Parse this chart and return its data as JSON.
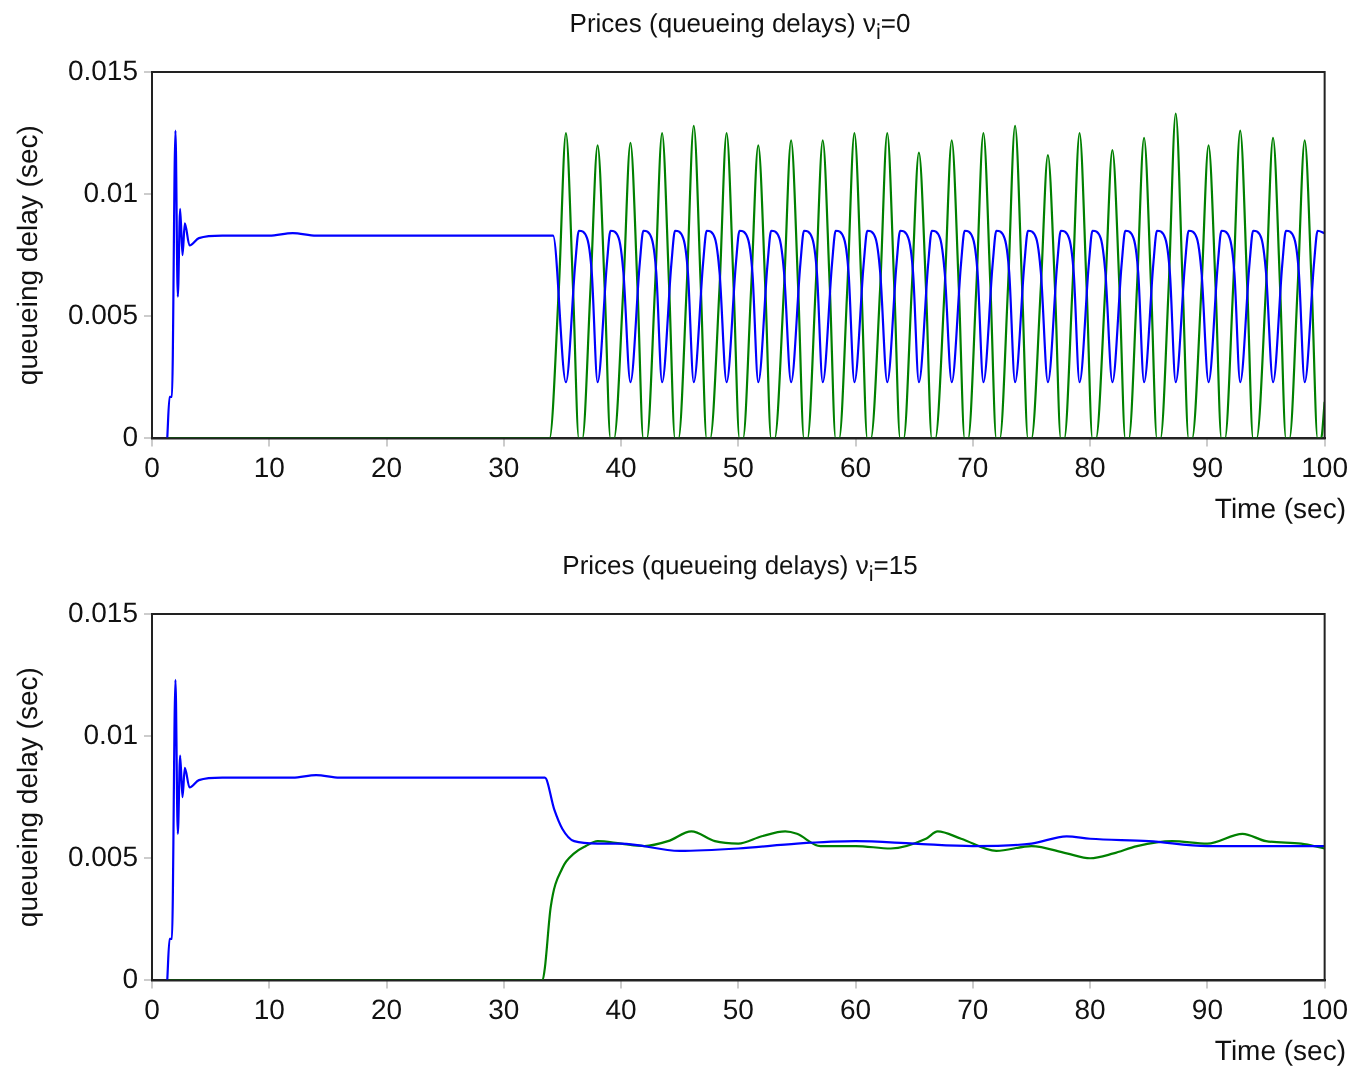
{
  "chart_data": [
    {
      "type": "line",
      "title": "Prices (queueing delays) ν$_{i}$=0",
      "xlabel": "Time (sec)",
      "ylabel": "queueing delay (sec)",
      "xlim": [
        0,
        100
      ],
      "ylim": [
        0,
        0.015
      ],
      "xticks": [
        0,
        10,
        20,
        30,
        40,
        50,
        60,
        70,
        80,
        90,
        100
      ],
      "yticks": [
        0,
        0.005,
        0.01,
        0.015
      ],
      "series": [
        {
          "color": "#0000ff",
          "x": [
            1.3,
            1.5,
            1.7,
            2.0,
            2.2,
            2.4,
            2.6,
            2.8,
            3.2,
            4,
            6,
            8,
            10,
            12,
            14,
            16,
            18,
            20,
            22,
            24,
            26,
            28,
            30,
            32,
            34.2,
            35.3,
            36.1,
            36.4,
            37.1,
            37.5,
            38.0,
            38.8,
            39.1,
            39.8,
            40.2,
            40.8,
            41.6,
            41.9,
            42.6,
            43.0,
            43.5,
            44.3,
            44.6,
            45.3,
            45.7,
            46.2,
            47.0,
            47.3,
            48.0,
            48.4,
            49.0,
            49.8,
            50.1,
            50.8,
            51.2,
            51.7,
            52.5,
            52.8,
            53.5,
            53.9,
            54.5,
            55.3,
            55.6,
            56.3,
            56.7,
            57.2,
            58.0,
            58.3,
            59.0,
            59.4,
            59.9,
            60.7,
            61.0,
            61.7,
            62.1,
            62.7,
            63.5,
            63.8,
            64.5,
            64.9,
            65.4,
            66.2,
            66.5,
            67.2,
            67.6,
            68.2,
            69.0,
            69.3,
            70.0,
            70.4,
            70.9,
            71.7,
            72.0,
            72.7,
            73.1,
            73.6,
            74.4,
            74.7,
            75.4,
            75.8,
            76.4,
            77.2,
            77.5,
            78.2,
            78.6,
            79.1,
            79.9,
            80.2,
            80.9,
            81.3,
            81.9,
            82.7,
            83.0,
            83.7,
            84.1,
            84.6,
            85.4,
            85.7,
            86.4,
            86.8,
            87.3,
            88.1,
            88.4,
            89.1,
            89.5,
            90.1,
            90.9,
            91.2,
            91.9,
            92.3,
            92.8,
            93.6,
            93.9,
            94.6,
            95.0,
            95.6,
            96.4,
            96.7,
            97.4,
            97.8,
            98.3,
            99.1,
            99.4,
            100
          ],
          "values": [
            0,
            0.0017,
            0.0017,
            0.0126,
            0.0058,
            0.0094,
            0.0075,
            0.0088,
            0.0079,
            0.0082,
            0.0083,
            0.0083,
            0.0083,
            0.0084,
            0.0083,
            0.0083,
            0.0083,
            0.0083,
            0.0083,
            0.0083,
            0.0083,
            0.0083,
            0.0083,
            0.0083,
            0.0083,
            0.0023,
            0.0072,
            0.0085,
            0.0082,
            0.0068,
            0.0023,
            0.0072,
            0.0085,
            0.0082,
            0.0068,
            0.0023,
            0.0072,
            0.0085,
            0.0082,
            0.0068,
            0.0023,
            0.0072,
            0.0085,
            0.0082,
            0.0068,
            0.0023,
            0.0072,
            0.0085,
            0.0082,
            0.0068,
            0.0023,
            0.0072,
            0.0085,
            0.0082,
            0.0068,
            0.0023,
            0.0072,
            0.0085,
            0.0082,
            0.0068,
            0.0023,
            0.0072,
            0.0085,
            0.0082,
            0.0068,
            0.0023,
            0.0072,
            0.0085,
            0.0082,
            0.0068,
            0.0023,
            0.0072,
            0.0085,
            0.0082,
            0.0068,
            0.0023,
            0.0072,
            0.0085,
            0.0082,
            0.0068,
            0.0023,
            0.0072,
            0.0085,
            0.0082,
            0.0068,
            0.0023,
            0.0072,
            0.0085,
            0.0082,
            0.0068,
            0.0023,
            0.0072,
            0.0085,
            0.0082,
            0.0068,
            0.0023,
            0.0072,
            0.0085,
            0.0082,
            0.0068,
            0.0023,
            0.0072,
            0.0085,
            0.0082,
            0.0068,
            0.0023,
            0.0072,
            0.0085,
            0.0082,
            0.0068,
            0.0023,
            0.0072,
            0.0085,
            0.0082,
            0.0068,
            0.0023,
            0.0072,
            0.0085,
            0.0082,
            0.0068,
            0.0023,
            0.0072,
            0.0085,
            0.0082,
            0.0068,
            0.0023,
            0.0072,
            0.0085,
            0.0082,
            0.0068,
            0.0023,
            0.0072,
            0.0085,
            0.0082,
            0.0068,
            0.0023,
            0.0072,
            0.0085,
            0.0082,
            0.0068,
            0.0023,
            0.0072,
            0.0085,
            0.0084
          ]
        },
        {
          "color": "#008000",
          "x": [
            1.3,
            33.9,
            34.7,
            35.3,
            35.9,
            36.4,
            36.7,
            37.4,
            38.0,
            38.6,
            39.1,
            39.4,
            40.2,
            40.8,
            41.4,
            41.9,
            42.2,
            42.9,
            43.5,
            44.1,
            44.6,
            44.9,
            45.6,
            46.2,
            46.8,
            47.3,
            47.6,
            48.4,
            49.0,
            49.6,
            50.1,
            50.4,
            51.1,
            51.7,
            52.3,
            52.8,
            53.1,
            53.9,
            54.5,
            55.1,
            55.6,
            55.9,
            56.6,
            57.2,
            57.8,
            58.3,
            58.6,
            59.3,
            59.9,
            60.5,
            61.0,
            61.3,
            62.1,
            62.7,
            63.3,
            63.8,
            64.1,
            64.8,
            65.4,
            66.0,
            66.5,
            66.8,
            67.6,
            68.2,
            68.8,
            69.3,
            69.6,
            70.3,
            70.9,
            71.5,
            72.0,
            72.3,
            73.0,
            73.6,
            74.2,
            74.7,
            75.0,
            75.8,
            76.4,
            77.0,
            77.5,
            77.8,
            78.5,
            79.1,
            79.7,
            80.2,
            80.5,
            81.3,
            81.9,
            82.5,
            83.0,
            83.3,
            84.0,
            84.6,
            85.2,
            85.7,
            86.0,
            86.7,
            87.3,
            87.9,
            88.4,
            88.7,
            89.5,
            90.1,
            90.7,
            91.2,
            91.5,
            92.2,
            92.8,
            93.4,
            93.9,
            94.2,
            95.0,
            95.6,
            96.2,
            96.7,
            97.0,
            97.7,
            98.3,
            98.9,
            99.4,
            99.7,
            100
          ],
          "values": [
            0,
            0,
            0.0062,
            0.0125,
            0.0062,
            0,
            0,
            0.0062,
            0.012,
            0.0062,
            0,
            0,
            0.0062,
            0.0121,
            0.0062,
            0,
            0,
            0.0062,
            0.0125,
            0.0062,
            0,
            0,
            0.0062,
            0.0128,
            0.0062,
            0,
            0,
            0.0062,
            0.0125,
            0.0062,
            0,
            0,
            0.0062,
            0.012,
            0.0062,
            0,
            0,
            0.0062,
            0.0122,
            0.0062,
            0,
            0,
            0.0062,
            0.0122,
            0.0062,
            0,
            0,
            0.0062,
            0.0125,
            0.0062,
            0,
            0,
            0.0062,
            0.0125,
            0.0062,
            0,
            0,
            0.0062,
            0.0117,
            0.0062,
            0,
            0,
            0.0062,
            0.0122,
            0.0062,
            0,
            0,
            0.0062,
            0.0125,
            0.0062,
            0,
            0,
            0.0062,
            0.0128,
            0.0062,
            0,
            0,
            0.0062,
            0.0116,
            0.0062,
            0,
            0,
            0.0062,
            0.0125,
            0.0062,
            0,
            0,
            0.0062,
            0.0118,
            0.0062,
            0,
            0,
            0.0062,
            0.0123,
            0.0062,
            0,
            0,
            0.0062,
            0.0133,
            0.0062,
            0,
            0,
            0.0062,
            0.012,
            0.0062,
            0,
            0,
            0.0062,
            0.0126,
            0.0062,
            0,
            0,
            0.0062,
            0.0123,
            0.0062,
            0,
            0,
            0.0062,
            0.0122,
            0.0062,
            0,
            0,
            0.0015
          ]
        }
      ]
    },
    {
      "type": "line",
      "title": "Prices (queueing delays) ν$_{i}$=15",
      "xlabel": "Time (sec)",
      "ylabel": "queueing delay (sec)",
      "xlim": [
        0,
        100
      ],
      "ylim": [
        0,
        0.015
      ],
      "xticks": [
        0,
        10,
        20,
        30,
        40,
        50,
        60,
        70,
        80,
        90,
        100
      ],
      "yticks": [
        0,
        0.005,
        0.01,
        0.015
      ],
      "series": [
        {
          "color": "#0000ff",
          "x": [
            1.3,
            1.5,
            1.7,
            2.0,
            2.2,
            2.4,
            2.6,
            2.8,
            3.2,
            4,
            6,
            8,
            10,
            12,
            14,
            16,
            18,
            20,
            22,
            24,
            26,
            28,
            30,
            32,
            33.5,
            34.3,
            35,
            36,
            38,
            40,
            45,
            50,
            55,
            60,
            65,
            70,
            75,
            78,
            80,
            85,
            90,
            95,
            100
          ],
          "values": [
            0,
            0.0017,
            0.0017,
            0.0123,
            0.006,
            0.0092,
            0.0075,
            0.0087,
            0.0079,
            0.0082,
            0.0083,
            0.0083,
            0.0083,
            0.0083,
            0.0084,
            0.0083,
            0.0083,
            0.0083,
            0.0083,
            0.0083,
            0.0083,
            0.0083,
            0.0083,
            0.0083,
            0.0083,
            0.007,
            0.0062,
            0.0057,
            0.0056,
            0.0056,
            0.0053,
            0.0054,
            0.0056,
            0.0057,
            0.0056,
            0.0055,
            0.0056,
            0.0059,
            0.0058,
            0.0057,
            0.0055,
            0.0055,
            0.0055
          ]
        },
        {
          "color": "#008000",
          "x": [
            1.3,
            33.3,
            33.5,
            34,
            35,
            36,
            37,
            38,
            40,
            42,
            44,
            46,
            48,
            50,
            52,
            54,
            55,
            57,
            60,
            63,
            66,
            67,
            69,
            72,
            75,
            78,
            80,
            82,
            84,
            87,
            90,
            93,
            95,
            98,
            100
          ],
          "values": [
            0,
            0,
            0.0005,
            0.003,
            0.0046,
            0.0052,
            0.0055,
            0.0057,
            0.0056,
            0.0055,
            0.0057,
            0.0061,
            0.0057,
            0.0056,
            0.0059,
            0.0061,
            0.006,
            0.0055,
            0.0055,
            0.0054,
            0.0058,
            0.0061,
            0.0058,
            0.0053,
            0.0055,
            0.0052,
            0.005,
            0.0052,
            0.0055,
            0.0057,
            0.0056,
            0.006,
            0.0057,
            0.0056,
            0.0054
          ]
        }
      ]
    }
  ]
}
